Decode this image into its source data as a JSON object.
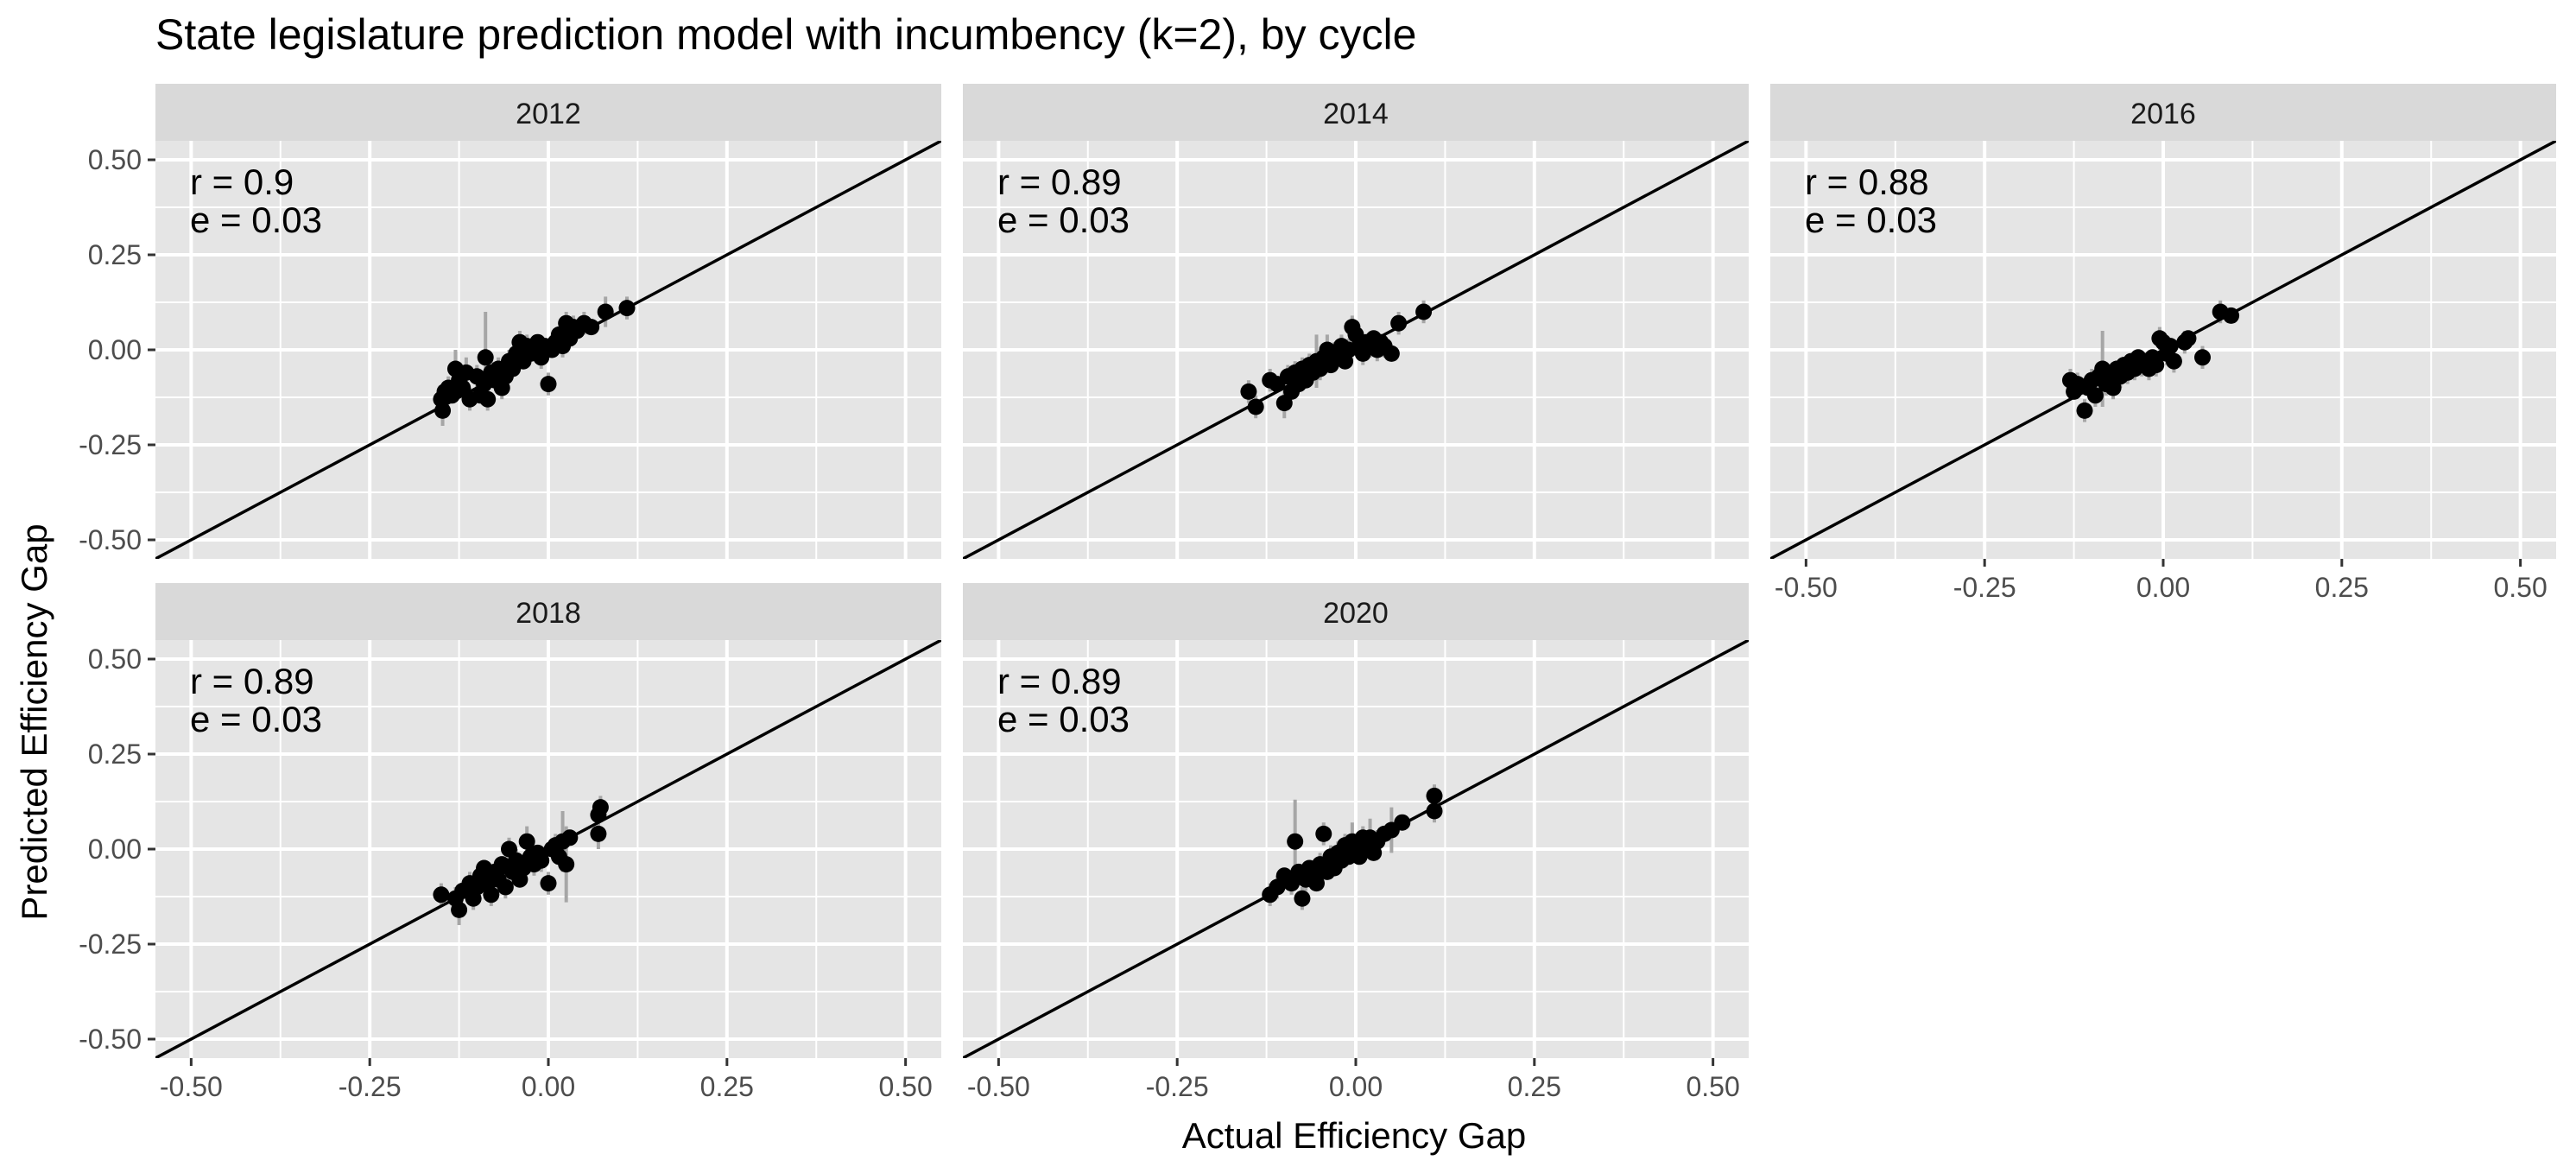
{
  "chart_data": {
    "type": "scatter",
    "title": "State legislature prediction model with incumbency (k=2), by cycle",
    "xlabel": "Actual Efficiency Gap",
    "ylabel": "Predicted Efficiency Gap",
    "xlim": [
      -0.55,
      0.55
    ],
    "ylim": [
      -0.55,
      0.55
    ],
    "x_ticks": [
      "-0.50",
      "-0.25",
      "0.00",
      "0.25",
      "0.50"
    ],
    "y_ticks": [
      "-0.50",
      "-0.25",
      "0.00",
      "0.25",
      "0.50"
    ],
    "reference_line": "y = x",
    "grid": true,
    "colors": {
      "panel_bg": "#e5e5e5",
      "strip_bg": "#d9d9d9",
      "grid": "#ffffff",
      "point": "#000000",
      "error_bar": "#a6a6a6",
      "line": "#000000"
    },
    "panels": [
      {
        "label": "2012",
        "r_text": "r = 0.9",
        "e_text": "e = 0.03",
        "points": [
          [
            -0.15,
            -0.13,
            0.03
          ],
          [
            -0.148,
            -0.16,
            0.04
          ],
          [
            -0.145,
            -0.11,
            0.02
          ],
          [
            -0.14,
            -0.1,
            0.03
          ],
          [
            -0.135,
            -0.12,
            0.02
          ],
          [
            -0.13,
            -0.05,
            0.05
          ],
          [
            -0.125,
            -0.08,
            0.03
          ],
          [
            -0.12,
            -0.1,
            0.02
          ],
          [
            -0.115,
            -0.06,
            0.04
          ],
          [
            -0.11,
            -0.13,
            0.03
          ],
          [
            -0.1,
            -0.07,
            0.03
          ],
          [
            -0.095,
            -0.12,
            0.02
          ],
          [
            -0.09,
            -0.09,
            0.03
          ],
          [
            -0.088,
            -0.02,
            0.12
          ],
          [
            -0.085,
            -0.13,
            0.03
          ],
          [
            -0.08,
            -0.06,
            0.03
          ],
          [
            -0.075,
            -0.08,
            0.02
          ],
          [
            -0.07,
            -0.05,
            0.03
          ],
          [
            -0.065,
            -0.1,
            0.03
          ],
          [
            -0.06,
            -0.07,
            0.02
          ],
          [
            -0.055,
            -0.03,
            0.03
          ],
          [
            -0.05,
            -0.05,
            0.02
          ],
          [
            -0.045,
            -0.01,
            0.04
          ],
          [
            -0.04,
            0.02,
            0.03
          ],
          [
            -0.035,
            -0.03,
            0.02
          ],
          [
            -0.03,
            0.01,
            0.03
          ],
          [
            -0.025,
            -0.01,
            0.02
          ],
          [
            -0.02,
            0.0,
            0.03
          ],
          [
            -0.015,
            0.02,
            0.02
          ],
          [
            -0.01,
            -0.02,
            0.03
          ],
          [
            -0.005,
            0.01,
            0.02
          ],
          [
            0.0,
            -0.09,
            0.03
          ],
          [
            0.005,
            0.0,
            0.02
          ],
          [
            0.01,
            0.02,
            0.03
          ],
          [
            0.015,
            0.04,
            0.02
          ],
          [
            0.02,
            0.01,
            0.03
          ],
          [
            0.025,
            0.07,
            0.03
          ],
          [
            0.03,
            0.03,
            0.02
          ],
          [
            0.035,
            0.06,
            0.03
          ],
          [
            0.04,
            0.05,
            0.02
          ],
          [
            0.05,
            0.07,
            0.03
          ],
          [
            0.06,
            0.06,
            0.02
          ],
          [
            0.08,
            0.1,
            0.04
          ],
          [
            0.11,
            0.11,
            0.03
          ]
        ]
      },
      {
        "label": "2014",
        "r_text": "r = 0.89",
        "e_text": "e = 0.03",
        "points": [
          [
            -0.15,
            -0.11,
            0.03
          ],
          [
            -0.14,
            -0.15,
            0.03
          ],
          [
            -0.12,
            -0.08,
            0.03
          ],
          [
            -0.11,
            -0.09,
            0.02
          ],
          [
            -0.1,
            -0.14,
            0.04
          ],
          [
            -0.095,
            -0.07,
            0.03
          ],
          [
            -0.09,
            -0.11,
            0.02
          ],
          [
            -0.085,
            -0.06,
            0.03
          ],
          [
            -0.08,
            -0.09,
            0.02
          ],
          [
            -0.075,
            -0.05,
            0.03
          ],
          [
            -0.07,
            -0.08,
            0.02
          ],
          [
            -0.065,
            -0.04,
            0.03
          ],
          [
            -0.06,
            -0.06,
            0.02
          ],
          [
            -0.055,
            -0.03,
            0.07
          ],
          [
            -0.05,
            -0.05,
            0.03
          ],
          [
            -0.045,
            -0.02,
            0.02
          ],
          [
            -0.04,
            0.0,
            0.04
          ],
          [
            -0.035,
            -0.04,
            0.02
          ],
          [
            -0.03,
            -0.01,
            0.03
          ],
          [
            -0.025,
            -0.02,
            0.02
          ],
          [
            -0.02,
            0.01,
            0.03
          ],
          [
            -0.015,
            -0.03,
            0.02
          ],
          [
            -0.01,
            0.0,
            0.03
          ],
          [
            -0.005,
            0.06,
            0.03
          ],
          [
            0.0,
            0.04,
            0.03
          ],
          [
            0.005,
            0.01,
            0.02
          ],
          [
            0.01,
            -0.01,
            0.03
          ],
          [
            0.015,
            0.02,
            0.02
          ],
          [
            0.02,
            0.01,
            0.03
          ],
          [
            0.025,
            0.03,
            0.02
          ],
          [
            0.03,
            0.0,
            0.03
          ],
          [
            0.035,
            0.02,
            0.02
          ],
          [
            0.04,
            0.01,
            0.03
          ],
          [
            0.05,
            -0.01,
            0.02
          ],
          [
            0.06,
            0.07,
            0.03
          ],
          [
            0.095,
            0.1,
            0.03
          ]
        ]
      },
      {
        "label": "2016",
        "r_text": "r = 0.88",
        "e_text": "e = 0.03",
        "points": [
          [
            -0.13,
            -0.08,
            0.03
          ],
          [
            -0.125,
            -0.11,
            0.02
          ],
          [
            -0.12,
            -0.09,
            0.03
          ],
          [
            -0.11,
            -0.16,
            0.03
          ],
          [
            -0.105,
            -0.1,
            0.02
          ],
          [
            -0.1,
            -0.08,
            0.03
          ],
          [
            -0.095,
            -0.12,
            0.03
          ],
          [
            -0.09,
            -0.07,
            0.02
          ],
          [
            -0.085,
            -0.05,
            0.1
          ],
          [
            -0.08,
            -0.09,
            0.03
          ],
          [
            -0.075,
            -0.06,
            0.02
          ],
          [
            -0.07,
            -0.1,
            0.03
          ],
          [
            -0.065,
            -0.05,
            0.02
          ],
          [
            -0.06,
            -0.07,
            0.03
          ],
          [
            -0.055,
            -0.04,
            0.02
          ],
          [
            -0.05,
            -0.06,
            0.03
          ],
          [
            -0.045,
            -0.03,
            0.02
          ],
          [
            -0.04,
            -0.05,
            0.03
          ],
          [
            -0.035,
            -0.02,
            0.02
          ],
          [
            -0.03,
            -0.04,
            0.03
          ],
          [
            -0.025,
            -0.03,
            0.02
          ],
          [
            -0.02,
            -0.05,
            0.03
          ],
          [
            -0.015,
            -0.02,
            0.02
          ],
          [
            -0.01,
            -0.04,
            0.03
          ],
          [
            -0.005,
            0.03,
            0.03
          ],
          [
            0.0,
            0.02,
            0.02
          ],
          [
            0.005,
            -0.01,
            0.03
          ],
          [
            0.01,
            0.01,
            0.02
          ],
          [
            0.015,
            -0.03,
            0.03
          ],
          [
            0.03,
            0.02,
            0.03
          ],
          [
            0.035,
            0.03,
            0.02
          ],
          [
            0.055,
            -0.02,
            0.03
          ],
          [
            0.08,
            0.1,
            0.03
          ],
          [
            0.095,
            0.09,
            0.02
          ]
        ]
      },
      {
        "label": "2018",
        "r_text": "r = 0.89",
        "e_text": "e = 0.03",
        "points": [
          [
            -0.15,
            -0.12,
            0.03
          ],
          [
            -0.13,
            -0.13,
            0.03
          ],
          [
            -0.125,
            -0.16,
            0.04
          ],
          [
            -0.12,
            -0.11,
            0.02
          ],
          [
            -0.11,
            -0.09,
            0.03
          ],
          [
            -0.105,
            -0.13,
            0.03
          ],
          [
            -0.1,
            -0.1,
            0.02
          ],
          [
            -0.095,
            -0.07,
            0.03
          ],
          [
            -0.09,
            -0.05,
            0.02
          ],
          [
            -0.085,
            -0.09,
            0.03
          ],
          [
            -0.08,
            -0.12,
            0.03
          ],
          [
            -0.075,
            -0.06,
            0.02
          ],
          [
            -0.07,
            -0.08,
            0.03
          ],
          [
            -0.065,
            -0.04,
            0.02
          ],
          [
            -0.06,
            -0.1,
            0.03
          ],
          [
            -0.055,
            0.0,
            0.03
          ],
          [
            -0.05,
            -0.06,
            0.02
          ],
          [
            -0.045,
            -0.03,
            0.03
          ],
          [
            -0.04,
            -0.08,
            0.02
          ],
          [
            -0.035,
            -0.05,
            0.03
          ],
          [
            -0.03,
            0.02,
            0.04
          ],
          [
            -0.025,
            -0.02,
            0.02
          ],
          [
            -0.02,
            -0.04,
            0.03
          ],
          [
            -0.015,
            -0.01,
            0.02
          ],
          [
            -0.01,
            -0.03,
            0.03
          ],
          [
            0.0,
            -0.09,
            0.03
          ],
          [
            0.005,
            0.0,
            0.02
          ],
          [
            0.01,
            0.01,
            0.03
          ],
          [
            0.015,
            -0.02,
            0.02
          ],
          [
            0.02,
            0.02,
            0.08
          ],
          [
            0.025,
            -0.04,
            0.1
          ],
          [
            0.03,
            0.03,
            0.02
          ],
          [
            0.07,
            0.04,
            0.04
          ],
          [
            0.07,
            0.09,
            0.03
          ],
          [
            0.073,
            0.11,
            0.03
          ]
        ]
      },
      {
        "label": "2020",
        "r_text": "r = 0.89",
        "e_text": "e = 0.03",
        "points": [
          [
            -0.12,
            -0.12,
            0.03
          ],
          [
            -0.11,
            -0.1,
            0.03
          ],
          [
            -0.1,
            -0.07,
            0.02
          ],
          [
            -0.09,
            -0.09,
            0.03
          ],
          [
            -0.085,
            0.02,
            0.11
          ],
          [
            -0.08,
            -0.06,
            0.02
          ],
          [
            -0.075,
            -0.13,
            0.03
          ],
          [
            -0.07,
            -0.08,
            0.03
          ],
          [
            -0.065,
            -0.05,
            0.02
          ],
          [
            -0.06,
            -0.07,
            0.03
          ],
          [
            -0.055,
            -0.09,
            0.02
          ],
          [
            -0.05,
            -0.04,
            0.03
          ],
          [
            -0.045,
            0.04,
            0.03
          ],
          [
            -0.04,
            -0.06,
            0.02
          ],
          [
            -0.035,
            -0.02,
            0.03
          ],
          [
            -0.03,
            -0.05,
            0.02
          ],
          [
            -0.025,
            -0.01,
            0.03
          ],
          [
            -0.02,
            -0.03,
            0.02
          ],
          [
            -0.015,
            0.01,
            0.03
          ],
          [
            -0.01,
            -0.02,
            0.02
          ],
          [
            -0.005,
            0.02,
            0.05
          ],
          [
            0.0,
            0.0,
            0.03
          ],
          [
            0.005,
            -0.02,
            0.02
          ],
          [
            0.01,
            0.03,
            0.03
          ],
          [
            0.015,
            0.01,
            0.02
          ],
          [
            0.02,
            0.03,
            0.05
          ],
          [
            0.025,
            -0.01,
            0.02
          ],
          [
            0.03,
            0.02,
            0.03
          ],
          [
            0.04,
            0.04,
            0.02
          ],
          [
            0.05,
            0.05,
            0.06
          ],
          [
            0.065,
            0.07,
            0.02
          ],
          [
            0.11,
            0.1,
            0.03
          ],
          [
            0.11,
            0.14,
            0.03
          ]
        ]
      }
    ]
  }
}
